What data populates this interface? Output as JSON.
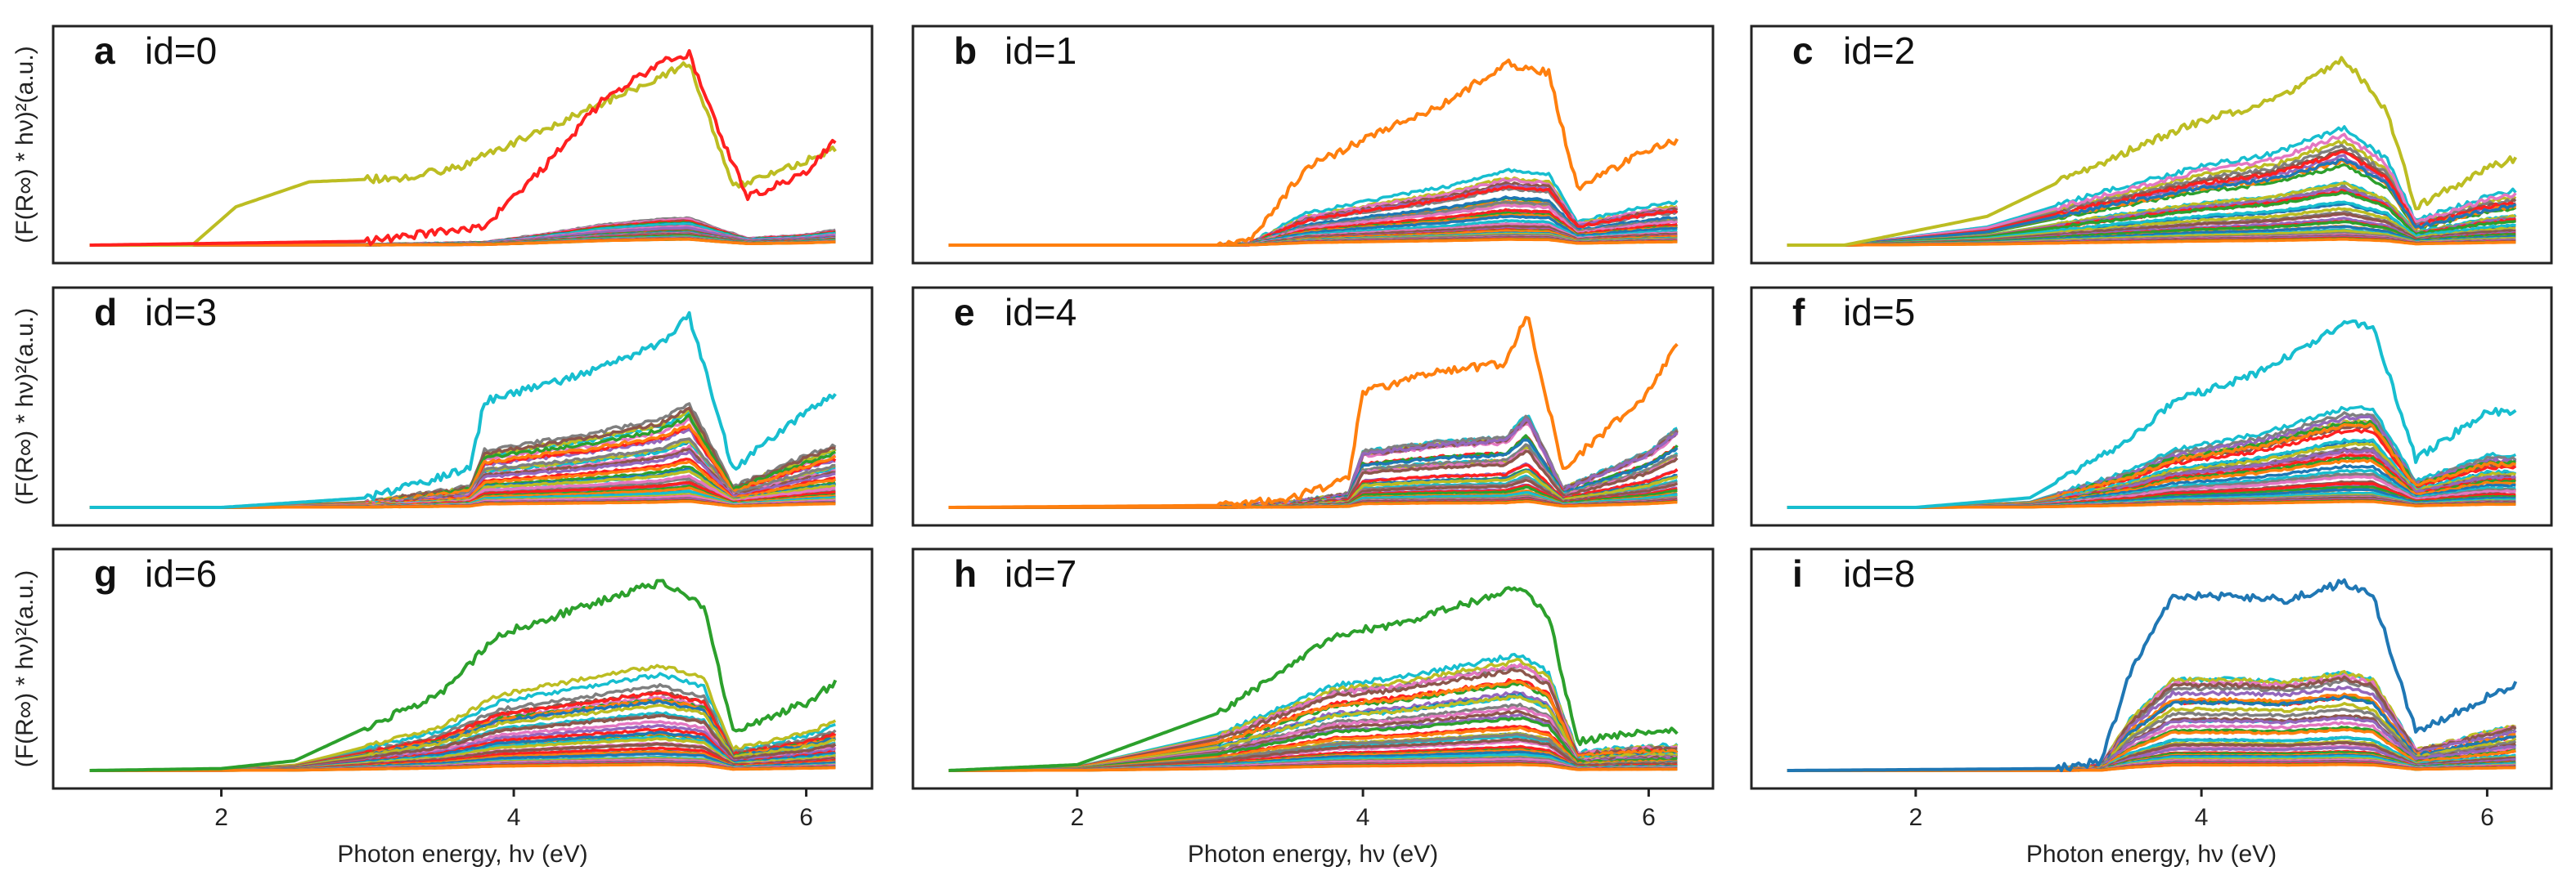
{
  "chart_data": {
    "type": "line",
    "xlabel": "Photon energy, hν (eV)",
    "ylabel": "(F(R∞) * hν)²(a.u.)",
    "xlim": [
      0.85,
      6.45
    ],
    "ylim": [
      0,
      1.1
    ],
    "xticks": [
      2,
      4,
      6
    ],
    "xtick_labels": [
      "2",
      "4",
      "6"
    ],
    "grid": false,
    "palette": [
      "#1f77b4",
      "#ff7f0e",
      "#2ca02c",
      "#ff2020",
      "#9467bd",
      "#8c564b",
      "#e377c2",
      "#7f7f7f",
      "#bcbd22",
      "#17becf"
    ],
    "curves_per_panel": 40,
    "panels": [
      {
        "letter": "a",
        "label": "id=0",
        "top_color": "#ff2020",
        "envelope": {
          "x": [
            1.1,
            3.0,
            3.8,
            4.2,
            4.6,
            5.0,
            5.2,
            5.4,
            5.6,
            6.0,
            6.2
          ],
          "y": [
            0,
            0.02,
            0.1,
            0.4,
            0.75,
            0.95,
            1.0,
            0.6,
            0.25,
            0.38,
            0.55
          ]
        },
        "spread": 0.12,
        "extra": [
          {
            "color": "#bcbd22",
            "x": [
              1.1,
              1.8,
              2.1,
              2.6,
              3.2,
              3.6,
              4.2,
              5.2,
              5.5,
              6.2
            ],
            "y": [
              0,
              0,
              0.2,
              0.33,
              0.35,
              0.4,
              0.6,
              0.95,
              0.3,
              0.5
            ]
          }
        ]
      },
      {
        "letter": "b",
        "label": "id=1",
        "top_color": "#ff7f0e",
        "envelope": {
          "x": [
            1.1,
            3.0,
            3.2,
            3.6,
            4.0,
            4.6,
            5.0,
            5.3,
            5.5,
            6.0,
            6.2
          ],
          "y": [
            0,
            0,
            0.02,
            0.4,
            0.55,
            0.75,
            0.95,
            0.9,
            0.3,
            0.5,
            0.55
          ]
        },
        "spread": 0.35,
        "extra": []
      },
      {
        "letter": "c",
        "label": "id=2",
        "top_color": "#bcbd22",
        "envelope": {
          "x": [
            1.1,
            1.5,
            2.5,
            3.2,
            4.0,
            4.5,
            5.0,
            5.3,
            5.5,
            6.0,
            6.2
          ],
          "y": [
            0,
            0,
            0.15,
            0.4,
            0.65,
            0.75,
            0.97,
            0.7,
            0.2,
            0.4,
            0.45
          ]
        },
        "spread": 0.6,
        "extra": []
      },
      {
        "letter": "d",
        "label": "id=3",
        "top_color": "#17becf",
        "envelope": {
          "x": [
            1.1,
            2.0,
            3.0,
            3.7,
            3.8,
            4.5,
            5.0,
            5.2,
            5.5,
            6.0,
            6.2
          ],
          "y": [
            0,
            0,
            0.05,
            0.2,
            0.55,
            0.7,
            0.85,
            1.0,
            0.2,
            0.5,
            0.6
          ]
        },
        "spread": 0.55,
        "extra": []
      },
      {
        "letter": "e",
        "label": "id=4",
        "top_color": "#ff7f0e",
        "envelope": {
          "x": [
            1.1,
            3.0,
            3.5,
            3.9,
            4.0,
            4.5,
            5.0,
            5.15,
            5.4,
            6.0,
            6.2
          ],
          "y": [
            0,
            0.01,
            0.05,
            0.15,
            0.6,
            0.7,
            0.75,
            1.0,
            0.2,
            0.6,
            0.85
          ]
        },
        "spread": 0.5,
        "extra": []
      },
      {
        "letter": "f",
        "label": "id=5",
        "top_color": "#17becf",
        "envelope": {
          "x": [
            1.1,
            2.0,
            2.8,
            3.5,
            3.8,
            4.4,
            5.0,
            5.2,
            5.5,
            6.0,
            6.2
          ],
          "y": [
            0,
            0,
            0.05,
            0.35,
            0.55,
            0.7,
            0.95,
            0.95,
            0.25,
            0.5,
            0.5
          ]
        },
        "spread": 0.55,
        "extra": []
      },
      {
        "letter": "g",
        "label": "id=6",
        "top_color": "#2ca02c",
        "envelope": {
          "x": [
            1.1,
            2.0,
            2.5,
            3.5,
            3.9,
            4.5,
            5.0,
            5.3,
            5.5,
            6.0,
            6.2
          ],
          "y": [
            0,
            0.01,
            0.05,
            0.4,
            0.7,
            0.85,
            0.97,
            0.85,
            0.2,
            0.35,
            0.45
          ]
        },
        "spread": 0.5,
        "extra": []
      },
      {
        "letter": "h",
        "label": "id=7",
        "top_color": "#2ca02c",
        "envelope": {
          "x": [
            1.1,
            2.0,
            3.0,
            3.8,
            4.2,
            4.8,
            5.1,
            5.3,
            5.5,
            6.0,
            6.2
          ],
          "y": [
            0,
            0.03,
            0.3,
            0.7,
            0.75,
            0.88,
            0.95,
            0.8,
            0.15,
            0.2,
            0.2
          ]
        },
        "spread": 0.6,
        "extra": []
      },
      {
        "letter": "i",
        "label": "id=8",
        "top_color": "#1f77b4",
        "envelope": {
          "x": [
            1.1,
            3.0,
            3.3,
            3.5,
            3.8,
            4.2,
            4.6,
            5.0,
            5.2,
            5.5,
            6.2
          ],
          "y": [
            0,
            0.01,
            0.05,
            0.5,
            0.9,
            0.9,
            0.88,
            0.97,
            0.9,
            0.2,
            0.45
          ]
        },
        "spread": 0.5,
        "extra": []
      }
    ]
  }
}
